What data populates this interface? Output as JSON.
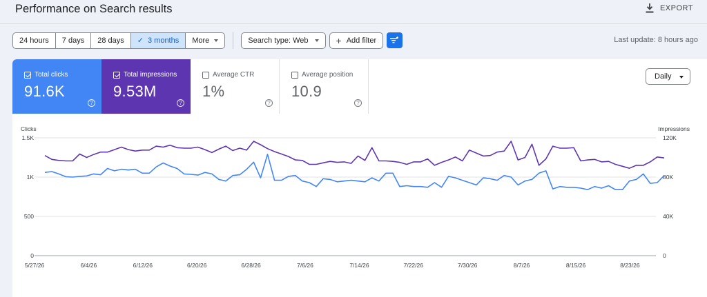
{
  "header": {
    "title": "Performance on Search results",
    "export_label": "EXPORT"
  },
  "date_range": {
    "options": [
      {
        "label": "24 hours",
        "active": false
      },
      {
        "label": "7 days",
        "active": false
      },
      {
        "label": "28 days",
        "active": false
      },
      {
        "label": "3 months",
        "active": true
      },
      {
        "label": "More",
        "active": false
      }
    ]
  },
  "filters": {
    "search_type_label": "Search type: Web",
    "add_filter_label": "Add filter"
  },
  "last_update": "Last update: 8 hours ago",
  "metrics": [
    {
      "label": "Total clicks",
      "value": "91.6K",
      "checked": true
    },
    {
      "label": "Total impressions",
      "value": "9.53M",
      "checked": true
    },
    {
      "label": "Average CTR",
      "value": "1%",
      "checked": false
    },
    {
      "label": "Average position",
      "value": "10.9",
      "checked": false
    }
  ],
  "granularity": "Daily",
  "colors": {
    "clicks": "#4285f4",
    "impressions": "#5e35b1",
    "accent": "#1a73e8"
  },
  "chart_data": {
    "type": "line",
    "left_axis": {
      "label": "Clicks",
      "ticks": [
        "1.5K",
        "1K",
        "500",
        "0"
      ],
      "range": [
        0,
        1500
      ]
    },
    "right_axis": {
      "label": "Impressions",
      "ticks": [
        "120K",
        "80K",
        "40K",
        "0"
      ],
      "range": [
        0,
        120000
      ]
    },
    "x_labels": [
      "5/27/26",
      "6/4/26",
      "6/12/26",
      "6/20/26",
      "6/28/26",
      "7/6/26",
      "7/14/26",
      "7/22/26",
      "7/30/26",
      "8/7/26",
      "8/15/26",
      "8/23/26"
    ],
    "grid": true,
    "series": [
      {
        "name": "Total clicks",
        "axis": "left",
        "values": [
          1060,
          1070,
          1040,
          1005,
          1000,
          1010,
          1015,
          1040,
          1030,
          1110,
          1080,
          1100,
          1090,
          1100,
          1050,
          1050,
          1130,
          1180,
          1140,
          1110,
          1040,
          1035,
          1025,
          1060,
          1040,
          970,
          950,
          1020,
          1030,
          1100,
          1190,
          990,
          1290,
          960,
          960,
          1010,
          1020,
          950,
          930,
          880,
          980,
          970,
          940,
          950,
          960,
          950,
          940,
          990,
          950,
          1050,
          1050,
          880,
          890,
          880,
          880,
          870,
          930,
          870,
          1010,
          990,
          960,
          930,
          900,
          990,
          980,
          960,
          1020,
          1000,
          900,
          950,
          970,
          1050,
          1080,
          850,
          880,
          870,
          870,
          860,
          840,
          880,
          860,
          890,
          840,
          840,
          950,
          970,
          1040,
          920,
          930,
          1020
        ]
      },
      {
        "name": "Total impressions",
        "axis": "right",
        "values": [
          102000,
          98000,
          97000,
          96500,
          96500,
          103500,
          100000,
          103000,
          105500,
          105500,
          108000,
          110500,
          108000,
          106500,
          107500,
          107500,
          111500,
          110500,
          112500,
          110000,
          109500,
          109500,
          110500,
          108000,
          105000,
          108500,
          111500,
          107000,
          109500,
          107500,
          116500,
          113000,
          109000,
          106000,
          103500,
          101000,
          97500,
          97000,
          93000,
          93000,
          94500,
          96000,
          95000,
          95500,
          94000,
          101500,
          97000,
          110000,
          96500,
          96500,
          96000,
          95000,
          93000,
          95500,
          95500,
          98500,
          92000,
          95000,
          97500,
          100500,
          96500,
          107500,
          104500,
          101500,
          102000,
          105500,
          106500,
          116500,
          97500,
          100000,
          113500,
          92000,
          98500,
          111500,
          109500,
          109500,
          110000,
          96500,
          97500,
          98000,
          95500,
          96000,
          93000,
          91000,
          89000,
          92000,
          92000,
          95500,
          100500,
          99500
        ]
      }
    ]
  }
}
